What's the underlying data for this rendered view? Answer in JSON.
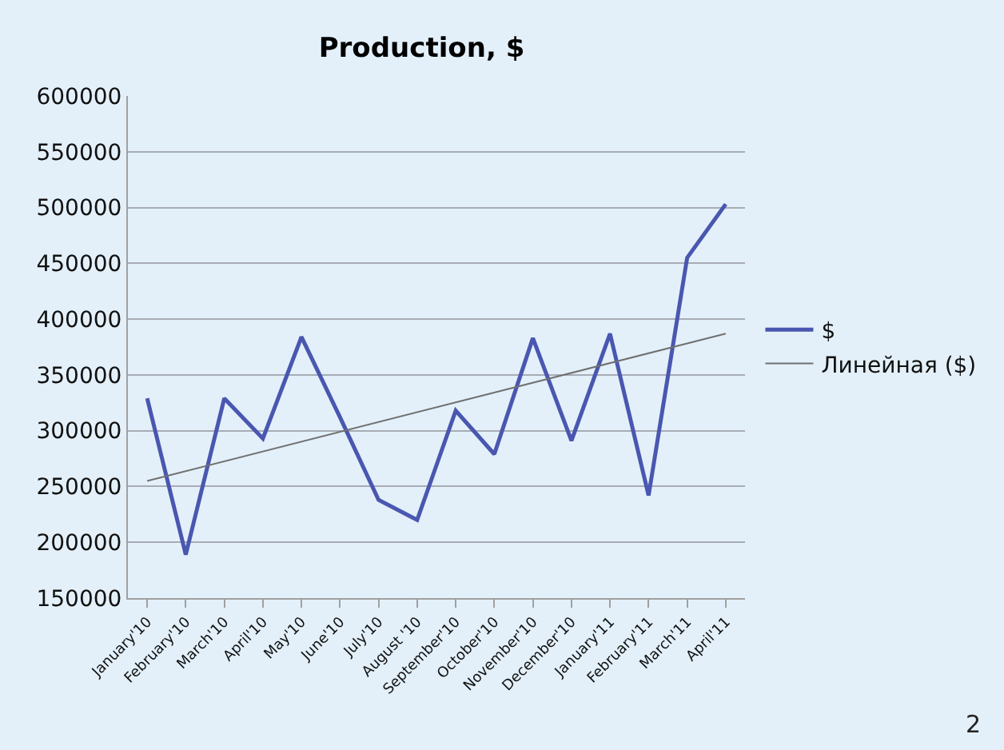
{
  "chart_data": {
    "type": "line",
    "title": "Production, $",
    "categories": [
      "January'10",
      "February'10",
      "March'10",
      "April'10",
      "May'10",
      "June'10",
      "July'10",
      "August '10",
      "September'10",
      "October'10",
      "November'10",
      "December'10",
      "January'11",
      "February'11",
      "March'11",
      "April'11"
    ],
    "series": [
      {
        "name": "$",
        "color": "#4a57b0",
        "values": [
          329000,
          189000,
          329000,
          293000,
          384000,
          312000,
          238000,
          220000,
          318000,
          279000,
          383000,
          291000,
          387000,
          242000,
          455000,
          503000
        ]
      },
      {
        "name": "Линейная ($)",
        "color": "#707070",
        "values": [
          255000,
          null,
          null,
          null,
          null,
          null,
          null,
          null,
          null,
          null,
          null,
          null,
          null,
          null,
          null,
          387000
        ]
      }
    ],
    "ylim": [
      150000,
      600000
    ],
    "yticks": [
      150000,
      200000,
      250000,
      300000,
      350000,
      400000,
      450000,
      500000,
      550000,
      600000
    ],
    "grid": "y",
    "legend": "right",
    "annotations": [
      "2"
    ]
  }
}
